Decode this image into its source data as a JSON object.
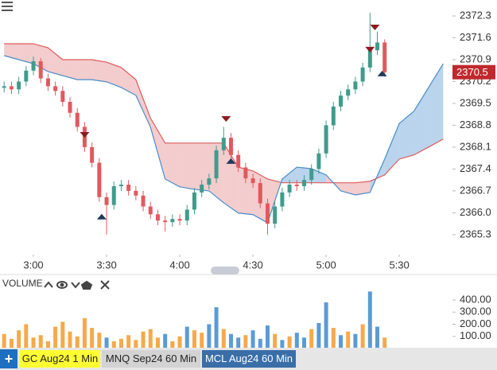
{
  "chart_data": [
    {
      "type": "candlestick",
      "x": [
        168,
        171,
        174,
        177,
        180,
        183,
        186,
        189,
        192,
        195,
        198,
        201,
        204,
        207,
        210,
        213,
        216,
        219,
        222,
        225,
        228,
        231,
        234,
        237,
        240,
        243,
        246,
        249,
        252,
        255,
        258,
        261,
        264,
        267,
        270,
        273,
        276,
        279,
        282,
        285,
        288,
        291,
        294,
        297,
        300,
        303,
        306,
        309,
        312,
        315,
        318,
        321,
        324
      ],
      "open": [
        2370.0,
        2370.05,
        2369.95,
        2370.2,
        2370.55,
        2370.85,
        2370.3,
        2370.05,
        2369.9,
        2369.55,
        2369.2,
        2368.75,
        2368.1,
        2367.6,
        2366.5,
        2366.25,
        2366.85,
        2366.9,
        2366.7,
        2366.55,
        2366.2,
        2365.95,
        2365.75,
        2365.7,
        2365.8,
        2365.75,
        2366.1,
        2366.65,
        2366.9,
        2367.1,
        2368.0,
        2368.4,
        2367.85,
        2367.45,
        2367.1,
        2366.95,
        2366.3,
        2365.65,
        2366.2,
        2366.65,
        2366.9,
        2366.85,
        2367.05,
        2367.4,
        2367.9,
        2368.8,
        2369.4,
        2369.75,
        2369.95,
        2370.2,
        2370.65,
        2371.2,
        2371.45
      ],
      "high": [
        2370.2,
        2370.2,
        2370.35,
        2370.7,
        2371.0,
        2370.95,
        2370.45,
        2370.2,
        2370.05,
        2369.7,
        2369.35,
        2368.9,
        2368.25,
        2367.75,
        2366.65,
        2367.0,
        2367.05,
        2367.05,
        2366.85,
        2366.7,
        2366.35,
        2366.1,
        2365.9,
        2365.95,
        2365.95,
        2366.25,
        2366.8,
        2367.05,
        2367.25,
        2368.15,
        2368.75,
        2368.55,
        2368.0,
        2367.6,
        2367.25,
        2367.1,
        2366.45,
        2366.35,
        2366.8,
        2367.05,
        2367.05,
        2367.2,
        2367.55,
        2368.05,
        2368.95,
        2369.55,
        2369.9,
        2370.1,
        2370.35,
        2370.8,
        2372.4,
        2371.8,
        2371.55
      ],
      "low": [
        2369.85,
        2369.8,
        2369.8,
        2370.05,
        2370.4,
        2370.15,
        2369.9,
        2369.75,
        2369.4,
        2369.05,
        2368.6,
        2367.95,
        2367.45,
        2366.35,
        2365.3,
        2366.1,
        2366.7,
        2366.55,
        2366.4,
        2366.05,
        2365.8,
        2365.6,
        2365.4,
        2365.55,
        2365.6,
        2365.6,
        2365.95,
        2366.5,
        2366.75,
        2366.95,
        2367.85,
        2367.7,
        2367.3,
        2366.95,
        2366.8,
        2366.15,
        2365.3,
        2365.5,
        2366.05,
        2366.5,
        2366.7,
        2366.7,
        2366.9,
        2367.25,
        2367.75,
        2368.65,
        2369.25,
        2369.6,
        2369.8,
        2370.05,
        2370.5,
        2371.05,
        2370.35
      ],
      "close": [
        2370.05,
        2369.95,
        2370.2,
        2370.55,
        2370.85,
        2370.3,
        2370.05,
        2369.9,
        2369.55,
        2369.2,
        2368.75,
        2368.1,
        2367.6,
        2366.5,
        2366.25,
        2366.85,
        2366.9,
        2366.7,
        2366.55,
        2366.2,
        2365.95,
        2365.75,
        2365.7,
        2365.8,
        2365.75,
        2366.1,
        2366.65,
        2366.9,
        2367.1,
        2368.0,
        2368.4,
        2367.85,
        2367.45,
        2367.1,
        2366.95,
        2366.3,
        2365.65,
        2366.2,
        2366.65,
        2366.9,
        2366.85,
        2367.05,
        2367.4,
        2367.9,
        2368.8,
        2369.4,
        2369.75,
        2369.95,
        2370.2,
        2370.65,
        2371.2,
        2371.45,
        2370.5
      ],
      "up_color": "#3f9c8c",
      "down_color": "#e0595e",
      "xlim": [
        166.3,
        350.5
      ],
      "xticks": [
        {
          "value": 180,
          "label": "3:00"
        },
        {
          "value": 210,
          "label": "3:30"
        },
        {
          "value": 240,
          "label": "4:00"
        },
        {
          "value": 270,
          "label": "4:30"
        },
        {
          "value": 300,
          "label": "5:00"
        },
        {
          "value": 330,
          "label": "5:30"
        }
      ],
      "ylim": [
        2364.66,
        2372.81
      ],
      "yticks": [
        2372.3,
        2371.6,
        2370.9,
        2370.2,
        2369.5,
        2368.8,
        2368.1,
        2367.4,
        2366.7,
        {
          "value": 2366,
          "label": "2366.0"
        },
        2365.3
      ],
      "cloud": {
        "x": [
          168,
          174,
          180,
          186,
          192,
          198,
          204,
          210,
          216,
          222,
          228,
          234,
          240,
          246,
          252,
          258,
          264,
          270,
          276,
          282,
          288,
          294,
          300,
          306,
          312,
          318,
          324,
          330,
          336,
          342,
          348
        ],
        "span_a": {
          "color": "#e05a5a",
          "fill": "#e9a3a6",
          "values": [
            2371.41,
            2371.41,
            2371.41,
            2371.28,
            2370.9,
            2370.9,
            2370.9,
            2370.82,
            2370.65,
            2370.26,
            2369.03,
            2368.23,
            2368.23,
            2368.23,
            2368.23,
            2368.23,
            2367.46,
            2367.34,
            2367.08,
            2366.96,
            2366.96,
            2366.96,
            2366.96,
            2366.96,
            2366.96,
            2367.01,
            2367.21,
            2367.72,
            2367.85,
            2368.1,
            2368.36
          ]
        },
        "span_b": {
          "color": "#4a8cc8",
          "fill": "#7fb0dc",
          "values": [
            2371.03,
            2370.9,
            2370.77,
            2370.52,
            2370.39,
            2370.26,
            2370.26,
            2370.19,
            2370.01,
            2369.76,
            2368.74,
            2367.08,
            2366.83,
            2366.75,
            2366.7,
            2366.32,
            2365.99,
            2365.94,
            2365.68,
            2367.08,
            2367.46,
            2367.41,
            2367.21,
            2366.7,
            2366.57,
            2366.65,
            2367.72,
            2368.86,
            2369.25,
            2370.01,
            2370.77
          ]
        }
      },
      "sell_signals": {
        "color": "#8b1a1f",
        "x": [
          201,
          259,
          318,
          320
        ],
        "y": [
          2368.48,
          2368.99,
          2371.21,
          2371.92
        ]
      },
      "buy_signals": {
        "color": "#1f3a5c",
        "x": [
          208,
          261,
          323
        ],
        "y": [
          2365.89,
          2367.67,
          2370.47
        ]
      },
      "last_price": {
        "value": 2370.5,
        "color": "#c0282d"
      }
    },
    {
      "type": "bar",
      "title": "VOLUME",
      "x": [
        168,
        171,
        174,
        177,
        180,
        183,
        186,
        189,
        192,
        195,
        198,
        201,
        204,
        207,
        210,
        213,
        216,
        219,
        222,
        225,
        228,
        231,
        234,
        237,
        240,
        243,
        246,
        249,
        252,
        255,
        258,
        261,
        264,
        267,
        270,
        273,
        276,
        279,
        282,
        285,
        288,
        291,
        294,
        297,
        300,
        303,
        306,
        309,
        312,
        315,
        318,
        321,
        324
      ],
      "values": [
        120,
        80,
        150,
        200,
        90,
        110,
        60,
        180,
        220,
        140,
        100,
        250,
        170,
        130,
        90,
        60,
        80,
        110,
        70,
        140,
        160,
        90,
        120,
        60,
        100,
        180,
        150,
        130,
        200,
        340,
        160,
        120,
        90,
        110,
        150,
        80,
        190,
        120,
        70,
        100,
        130,
        90,
        160,
        210,
        380,
        170,
        110,
        140,
        120,
        200,
        470,
        180,
        90
      ],
      "colors": [
        "#f5a94a",
        "#f5a94a",
        "#f5a94a",
        "#f5a94a",
        "#f5a94a",
        "#f5a94a",
        "#f5a94a",
        "#f5a94a",
        "#f5a94a",
        "#f5a94a",
        "#f5a94a",
        "#f5a94a",
        "#f5a94a",
        "#f5a94a",
        "#5b9bd5",
        "#f5a94a",
        "#f5a94a",
        "#f5a94a",
        "#f5a94a",
        "#f5a94a",
        "#f5a94a",
        "#f5a94a",
        "#5b9bd5",
        "#f5a94a",
        "#f5a94a",
        "#5b9bd5",
        "#f5a94a",
        "#f5a94a",
        "#5b9bd5",
        "#5b9bd5",
        "#f5a94a",
        "#5b9bd5",
        "#5b9bd5",
        "#f5a94a",
        "#5b9bd5",
        "#5b9bd5",
        "#5b9bd5",
        "#f5a94a",
        "#5b9bd5",
        "#f5a94a",
        "#5b9bd5",
        "#5b9bd5",
        "#f5a94a",
        "#5b9bd5",
        "#5b9bd5",
        "#f5a94a",
        "#5b9bd5",
        "#f5a94a",
        "#5b9bd5",
        "#f5a94a",
        "#5b9bd5",
        "#5b9bd5",
        "#f5a94a"
      ],
      "ylim": [
        0,
        590
      ],
      "yticks": [
        {
          "value": 100,
          "label": "100.00"
        },
        {
          "value": 200,
          "label": "200.00"
        },
        {
          "value": 300,
          "label": "300.00"
        },
        {
          "value": 400,
          "label": "400.00"
        }
      ]
    }
  ],
  "add_button": "+",
  "tabs": [
    "GC Aug24 1 Min",
    "MNQ Sep24 60 Min",
    "MCL Aug24 60 Min"
  ]
}
